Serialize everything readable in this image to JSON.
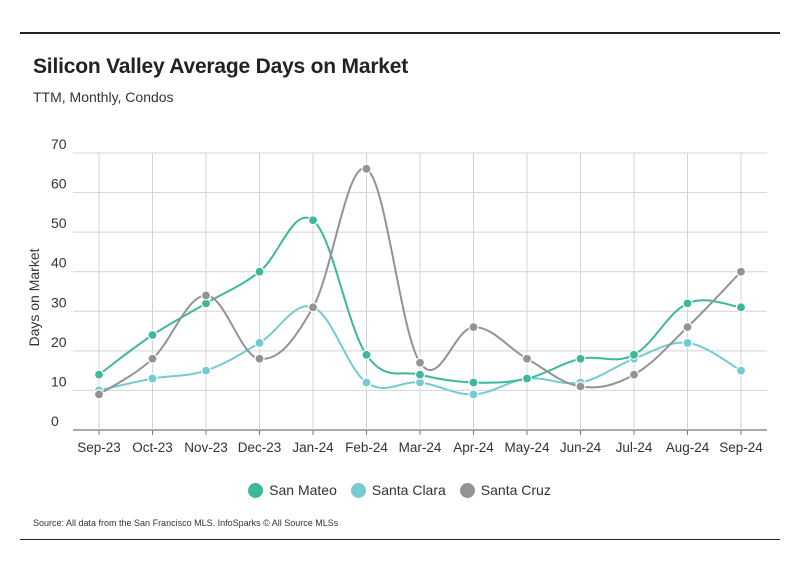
{
  "header": {
    "title": "Silicon Valley Average Days on Market",
    "subtitle": "TTM, Monthly, Condos"
  },
  "footer": {
    "source": "Source:  All data from the San Francisco MLS. InfoSparks © All Source MLSs"
  },
  "chart_data": {
    "type": "line",
    "ylabel": "Days on Market",
    "xlabel": "",
    "ylim": [
      0,
      70
    ],
    "yticks": [
      0,
      10,
      20,
      30,
      40,
      50,
      60,
      70
    ],
    "grid": "vertical and horizontal",
    "legend_position": "bottom-center",
    "smooth": true,
    "categories": [
      "Sep-23",
      "Oct-23",
      "Nov-23",
      "Dec-23",
      "Jan-24",
      "Feb-24",
      "Mar-24",
      "Apr-24",
      "May-24",
      "Jun-24",
      "Jul-24",
      "Aug-24",
      "Sep-24"
    ],
    "series": [
      {
        "name": "San Mateo",
        "color": "#3db89b",
        "values": [
          14,
          24,
          32,
          40,
          53,
          19,
          14,
          12,
          13,
          18,
          19,
          32,
          31
        ]
      },
      {
        "name": "Santa Clara",
        "color": "#74cbd1",
        "values": [
          10,
          13,
          15,
          22,
          31,
          12,
          12,
          9,
          13,
          12,
          18,
          22,
          15
        ]
      },
      {
        "name": "Santa Cruz",
        "color": "#939393",
        "values": [
          9,
          18,
          34,
          18,
          31,
          66,
          17,
          26,
          18,
          11,
          14,
          26,
          40
        ]
      }
    ]
  }
}
